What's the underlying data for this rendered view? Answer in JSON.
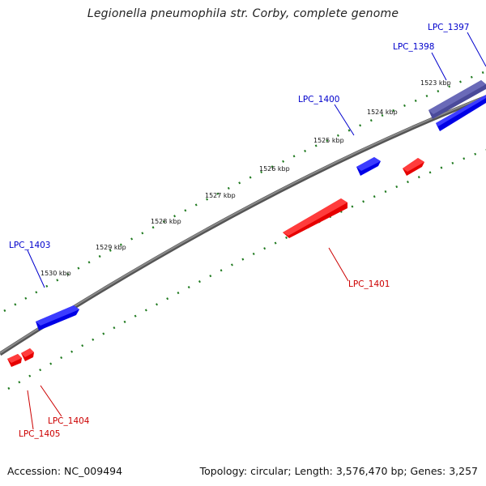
{
  "title": "Legionella pneumophila str. Corby, complete genome",
  "footer": {
    "accession": "Accession: NC_009494",
    "summary": "Topology: circular; Length: 3,576,470 bp; Genes: 3,257"
  },
  "colors": {
    "backbone": "#7a7a7a",
    "tick": "#1f7a1f",
    "forward_gene": "#0000ee",
    "forward_gene_dark": "#3b3b8c",
    "reverse_gene": "#ee0000",
    "forward_label": "#0000cc",
    "reverse_label": "#cc0000"
  },
  "ruler_labels": [
    "1523 kbp",
    "1524 kbp",
    "1525 kbp",
    "1526 kbp",
    "1527 kbp",
    "1528 kbp",
    "1529 kbp",
    "1530 kbp"
  ],
  "genes": {
    "forward": [
      "LPC_1397",
      "LPC_1398",
      "LPC_1400",
      "LPC_1403"
    ],
    "reverse": [
      "LPC_1401",
      "LPC_1404",
      "LPC_1405"
    ]
  }
}
